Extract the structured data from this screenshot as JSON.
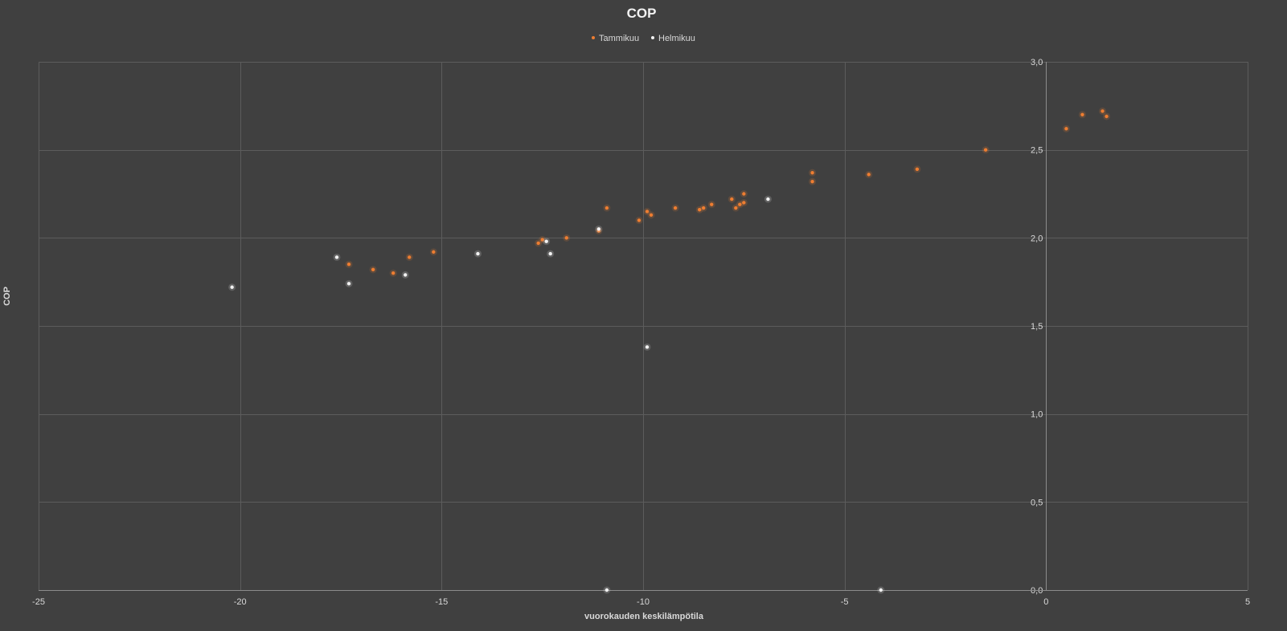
{
  "chart_data": {
    "type": "scatter",
    "title": "COP",
    "xlabel": "vuorokauden keskilämpötila",
    "ylabel": "COP",
    "xlim": [
      -25,
      5
    ],
    "ylim": [
      0,
      3
    ],
    "x_ticks": [
      "-25",
      "-20",
      "-15",
      "-10",
      "-5",
      "0",
      "5"
    ],
    "y_ticks": [
      "0,0",
      "0,5",
      "1,0",
      "1,5",
      "2,0",
      "2,5",
      "3,0"
    ],
    "x_tick_values": [
      -25,
      -20,
      -15,
      -10,
      -5,
      0,
      5
    ],
    "y_tick_values": [
      0,
      0.5,
      1.0,
      1.5,
      2.0,
      2.5,
      3.0
    ],
    "grid": true,
    "legend_position": "top",
    "colors": {
      "Tammikuu": "#ed7d31",
      "Helmikuu": "#f2f2f2",
      "background": "#404040",
      "grid": "#5c5c5c"
    },
    "series": [
      {
        "name": "Tammikuu",
        "points": [
          [
            -17.3,
            1.85
          ],
          [
            -16.7,
            1.82
          ],
          [
            -16.2,
            1.8
          ],
          [
            -15.8,
            1.89
          ],
          [
            -15.2,
            1.92
          ],
          [
            -12.6,
            1.97
          ],
          [
            -12.5,
            1.99
          ],
          [
            -11.9,
            2.0
          ],
          [
            -11.1,
            2.04
          ],
          [
            -10.9,
            2.17
          ],
          [
            -10.1,
            2.1
          ],
          [
            -9.9,
            2.15
          ],
          [
            -9.8,
            2.13
          ],
          [
            -9.2,
            2.17
          ],
          [
            -8.6,
            2.16
          ],
          [
            -8.5,
            2.17
          ],
          [
            -8.3,
            2.19
          ],
          [
            -7.8,
            2.22
          ],
          [
            -7.7,
            2.17
          ],
          [
            -7.6,
            2.19
          ],
          [
            -7.5,
            2.25
          ],
          [
            -7.5,
            2.2
          ],
          [
            -5.8,
            2.37
          ],
          [
            -5.8,
            2.32
          ],
          [
            -4.4,
            2.36
          ],
          [
            -3.2,
            2.39
          ],
          [
            -1.5,
            2.5
          ],
          [
            0.5,
            2.62
          ],
          [
            0.9,
            2.7
          ],
          [
            1.4,
            2.72
          ],
          [
            1.5,
            2.69
          ]
        ]
      },
      {
        "name": "Helmikuu",
        "points": [
          [
            -20.2,
            1.72
          ],
          [
            -17.6,
            1.89
          ],
          [
            -17.3,
            1.74
          ],
          [
            -15.9,
            1.79
          ],
          [
            -14.1,
            1.91
          ],
          [
            -12.4,
            1.98
          ],
          [
            -12.3,
            1.91
          ],
          [
            -11.1,
            2.05
          ],
          [
            -9.9,
            1.38
          ],
          [
            -6.9,
            2.22
          ],
          [
            -10.9,
            0.0
          ],
          [
            -4.1,
            0.0
          ]
        ]
      }
    ]
  }
}
